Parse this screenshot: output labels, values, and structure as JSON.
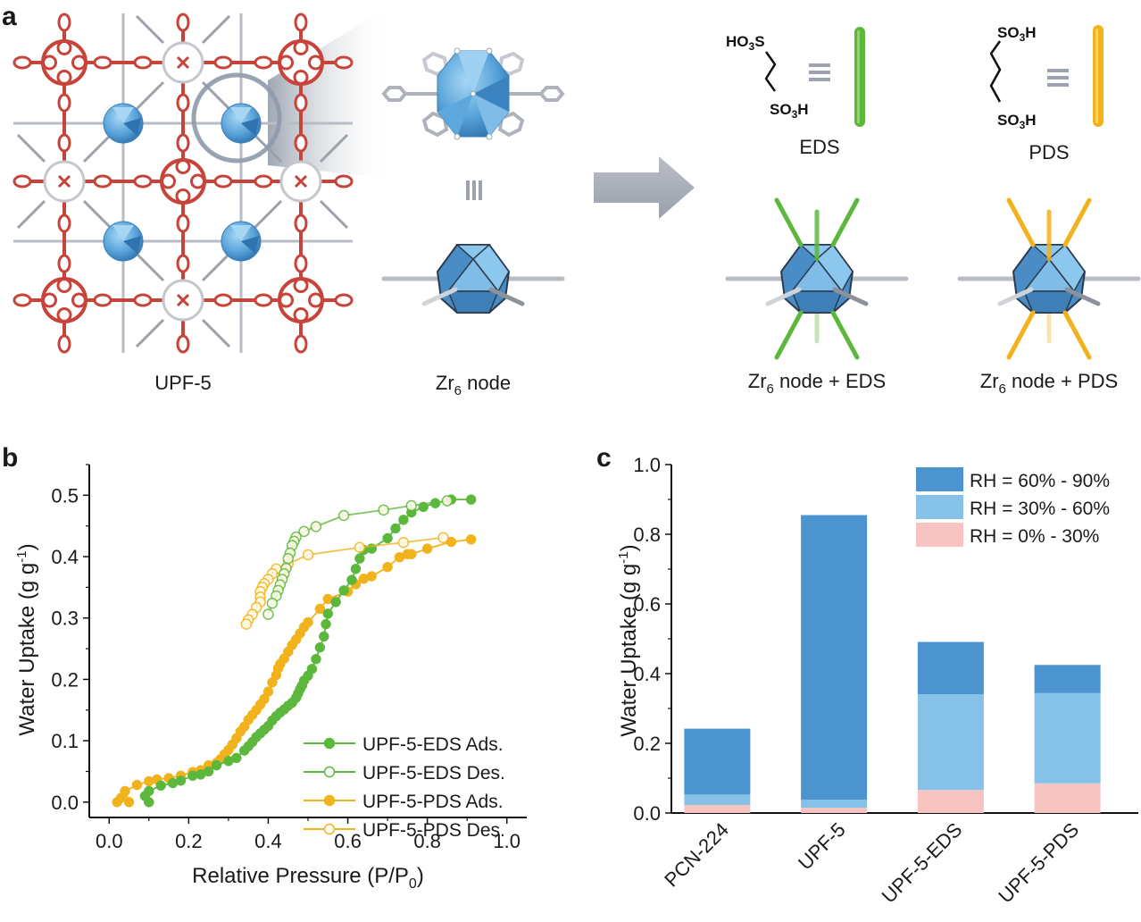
{
  "figure": {
    "panels": [
      {
        "id": "a",
        "label": "a"
      },
      {
        "id": "b",
        "label": "b"
      },
      {
        "id": "c",
        "label": "c"
      }
    ],
    "schematic": {
      "framework_caption": "UPF-5",
      "node_caption_main": "Zr",
      "node_caption_sub": "6",
      "node_caption_tail": " node",
      "equivalence_symbol": "≡",
      "linkers": [
        {
          "name": "EDS",
          "top_group": "HO3S",
          "bottom_group": "SO3H",
          "carbons": 2,
          "color": "#5cb83c"
        },
        {
          "name": "PDS",
          "top_group": "SO3H",
          "bottom_group": "SO3H",
          "carbons": 3,
          "color": "#f2b21c"
        }
      ],
      "modified_nodes": [
        {
          "caption_main": "Zr",
          "caption_sub": "6",
          "caption_tail": " node + EDS",
          "linker_color": "#5cb83c"
        },
        {
          "caption_main": "Zr",
          "caption_sub": "6",
          "caption_tail": " node + PDS",
          "linker_color": "#f2b21c"
        }
      ],
      "colors": {
        "porphyrin": "#c8433a",
        "cluster": "#4b94cf",
        "cluster_light": "#8cc8ee",
        "linker_grey": "#b8bcc4",
        "arrow": "#a8adb8"
      }
    }
  },
  "chart_data": [
    {
      "panel": "b",
      "type": "scatter",
      "title": "",
      "xlabel": "Relative Pressure (P/P0)",
      "xlabel_main": "Relative Pressure (P/P",
      "xlabel_sub": "0",
      "xlabel_tail": ")",
      "ylabel": "Water Uptake (g g-1)",
      "ylabel_main": "Water Uptake (g g",
      "ylabel_sup": "-1",
      "ylabel_tail": ")",
      "xlim": [
        -0.05,
        1.05
      ],
      "ylim": [
        -0.025,
        0.55
      ],
      "xticks": [
        0.0,
        0.2,
        0.4,
        0.6,
        0.8,
        1.0
      ],
      "xtick_labels": [
        "0.0",
        "0.2",
        "0.4",
        "0.6",
        "0.8",
        "1.0"
      ],
      "yticks": [
        0.0,
        0.1,
        0.2,
        0.3,
        0.4,
        0.5
      ],
      "ytick_labels": [
        "0.0",
        "0.1",
        "0.2",
        "0.3",
        "0.4",
        "0.5"
      ],
      "grid": false,
      "legend_position": "bottom-right",
      "series": [
        {
          "name": "UPF-5-EDS Ads.",
          "color": "#5cb83c",
          "marker": "filled",
          "x": [
            0.1,
            0.09,
            0.1,
            0.13,
            0.16,
            0.18,
            0.21,
            0.23,
            0.25,
            0.27,
            0.3,
            0.32,
            0.34,
            0.35,
            0.36,
            0.37,
            0.38,
            0.39,
            0.4,
            0.41,
            0.42,
            0.43,
            0.44,
            0.45,
            0.46,
            0.47,
            0.475,
            0.48,
            0.485,
            0.49,
            0.5,
            0.51,
            0.52,
            0.53,
            0.54,
            0.545,
            0.55,
            0.57,
            0.59,
            0.61,
            0.62,
            0.63,
            0.64,
            0.66,
            0.7,
            0.72,
            0.74,
            0.76,
            0.79,
            0.82,
            0.86,
            0.91
          ],
          "y": [
            0.0,
            0.01,
            0.018,
            0.027,
            0.031,
            0.035,
            0.043,
            0.045,
            0.05,
            0.06,
            0.067,
            0.072,
            0.084,
            0.091,
            0.098,
            0.106,
            0.112,
            0.118,
            0.124,
            0.133,
            0.14,
            0.146,
            0.151,
            0.157,
            0.162,
            0.17,
            0.177,
            0.184,
            0.19,
            0.198,
            0.206,
            0.217,
            0.233,
            0.252,
            0.27,
            0.29,
            0.307,
            0.326,
            0.345,
            0.362,
            0.38,
            0.397,
            0.411,
            0.413,
            0.43,
            0.446,
            0.46,
            0.472,
            0.481,
            0.487,
            0.493,
            0.493
          ]
        },
        {
          "name": "UPF-5-EDS Des.",
          "color": "#5cb83c",
          "marker": "open",
          "x": [
            0.85,
            0.76,
            0.69,
            0.59,
            0.52,
            0.49,
            0.47,
            0.465,
            0.46,
            0.455,
            0.45,
            0.445,
            0.44,
            0.435,
            0.43,
            0.425,
            0.42,
            0.41,
            0.4
          ],
          "y": [
            0.491,
            0.483,
            0.476,
            0.467,
            0.449,
            0.441,
            0.432,
            0.425,
            0.418,
            0.406,
            0.397,
            0.381,
            0.372,
            0.363,
            0.354,
            0.345,
            0.336,
            0.324,
            0.306
          ]
        },
        {
          "name": "UPF-5-PDS Ads.",
          "color": "#f2b21c",
          "marker": "filled",
          "x": [
            0.02,
            0.03,
            0.05,
            0.04,
            0.07,
            0.1,
            0.12,
            0.15,
            0.18,
            0.21,
            0.23,
            0.25,
            0.27,
            0.28,
            0.29,
            0.3,
            0.31,
            0.32,
            0.33,
            0.34,
            0.35,
            0.36,
            0.37,
            0.38,
            0.39,
            0.4,
            0.41,
            0.42,
            0.425,
            0.43,
            0.44,
            0.45,
            0.46,
            0.47,
            0.48,
            0.49,
            0.5,
            0.53,
            0.55,
            0.6,
            0.62,
            0.64,
            0.66,
            0.7,
            0.73,
            0.75,
            0.76,
            0.8,
            0.86,
            0.91
          ],
          "y": [
            0.0,
            0.007,
            0.0,
            0.018,
            0.028,
            0.034,
            0.037,
            0.039,
            0.043,
            0.049,
            0.052,
            0.06,
            0.064,
            0.07,
            0.078,
            0.085,
            0.094,
            0.104,
            0.115,
            0.123,
            0.134,
            0.142,
            0.15,
            0.159,
            0.168,
            0.18,
            0.195,
            0.207,
            0.218,
            0.225,
            0.234,
            0.245,
            0.256,
            0.265,
            0.275,
            0.285,
            0.293,
            0.315,
            0.331,
            0.343,
            0.355,
            0.364,
            0.368,
            0.383,
            0.399,
            0.404,
            0.404,
            0.413,
            0.424,
            0.428
          ]
        },
        {
          "name": "UPF-5-PDS Des.",
          "color": "#f2b21c",
          "marker": "open",
          "x": [
            0.84,
            0.74,
            0.63,
            0.5,
            0.45,
            0.42,
            0.41,
            0.4,
            0.39,
            0.385,
            0.38,
            0.38,
            0.38,
            0.37,
            0.36,
            0.35,
            0.345
          ],
          "y": [
            0.431,
            0.423,
            0.415,
            0.403,
            0.388,
            0.38,
            0.372,
            0.363,
            0.356,
            0.35,
            0.343,
            0.334,
            0.326,
            0.317,
            0.306,
            0.297,
            0.29
          ]
        }
      ]
    },
    {
      "panel": "c",
      "type": "bar",
      "stacked": true,
      "title": "",
      "xlabel": "",
      "ylabel": "Water Uptake (g g-1)",
      "ylabel_main": "Water Uptake (g g",
      "ylabel_sup": "-1",
      "ylabel_tail": ")",
      "ylim": [
        0,
        1.0
      ],
      "yticks": [
        0.0,
        0.2,
        0.4,
        0.6,
        0.8,
        1.0
      ],
      "ytick_labels": [
        "0.0",
        "0.2",
        "0.4",
        "0.6",
        "0.8",
        "1.0"
      ],
      "grid": false,
      "legend_position": "top-right",
      "categories": [
        "PCN-224",
        "UPF-5",
        "UPF-5-EDS",
        "UPF-5-PDS"
      ],
      "series": [
        {
          "name": "RH =   0% - 30%",
          "label": "RH =   0% - 30%",
          "color": "#f8c4c2",
          "values": [
            0.023,
            0.015,
            0.066,
            0.085
          ]
        },
        {
          "name": "RH = 30% - 60%",
          "label": "RH = 30% - 60%",
          "color": "#86c2e8",
          "values": [
            0.03,
            0.023,
            0.275,
            0.259
          ]
        },
        {
          "name": "RH = 60% - 90%",
          "label": "RH = 60% - 90%",
          "color": "#4b94cf",
          "values": [
            0.189,
            0.817,
            0.15,
            0.081
          ]
        }
      ],
      "cumulative_totals": [
        0.242,
        0.855,
        0.491,
        0.425
      ],
      "legend_order": [
        "RH = 60% - 90%",
        "RH = 30% - 60%",
        "RH =   0% - 30%"
      ]
    }
  ]
}
